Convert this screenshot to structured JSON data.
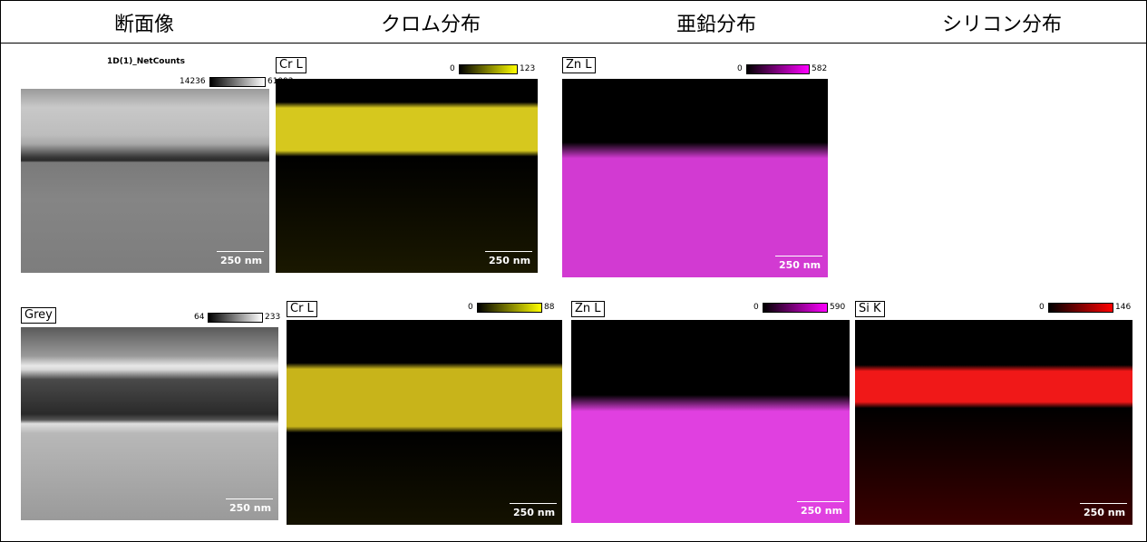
{
  "header": [
    "断面像",
    "クロム分布",
    "亜鉛分布",
    "シリコン分布"
  ],
  "rows": [
    {
      "panels": [
        {
          "title": "1D(1)_NetCounts",
          "min": "14236",
          "max": "61992",
          "scale": "250 nm"
        },
        {
          "label": "Cr L",
          "min": "0",
          "max": "123",
          "scale": "250 nm"
        },
        {
          "label": "Zn L",
          "min": "0",
          "max": "582",
          "scale": "250 nm"
        }
      ]
    },
    {
      "panels": [
        {
          "label": "Grey",
          "min": "64",
          "max": "233",
          "scale": "250 nm"
        },
        {
          "label": "Cr L",
          "min": "0",
          "max": "88",
          "scale": "250 nm"
        },
        {
          "label": "Zn L",
          "min": "0",
          "max": "590",
          "scale": "250 nm"
        },
        {
          "label": "Si K",
          "min": "0",
          "max": "146",
          "scale": "250 nm"
        }
      ]
    }
  ]
}
